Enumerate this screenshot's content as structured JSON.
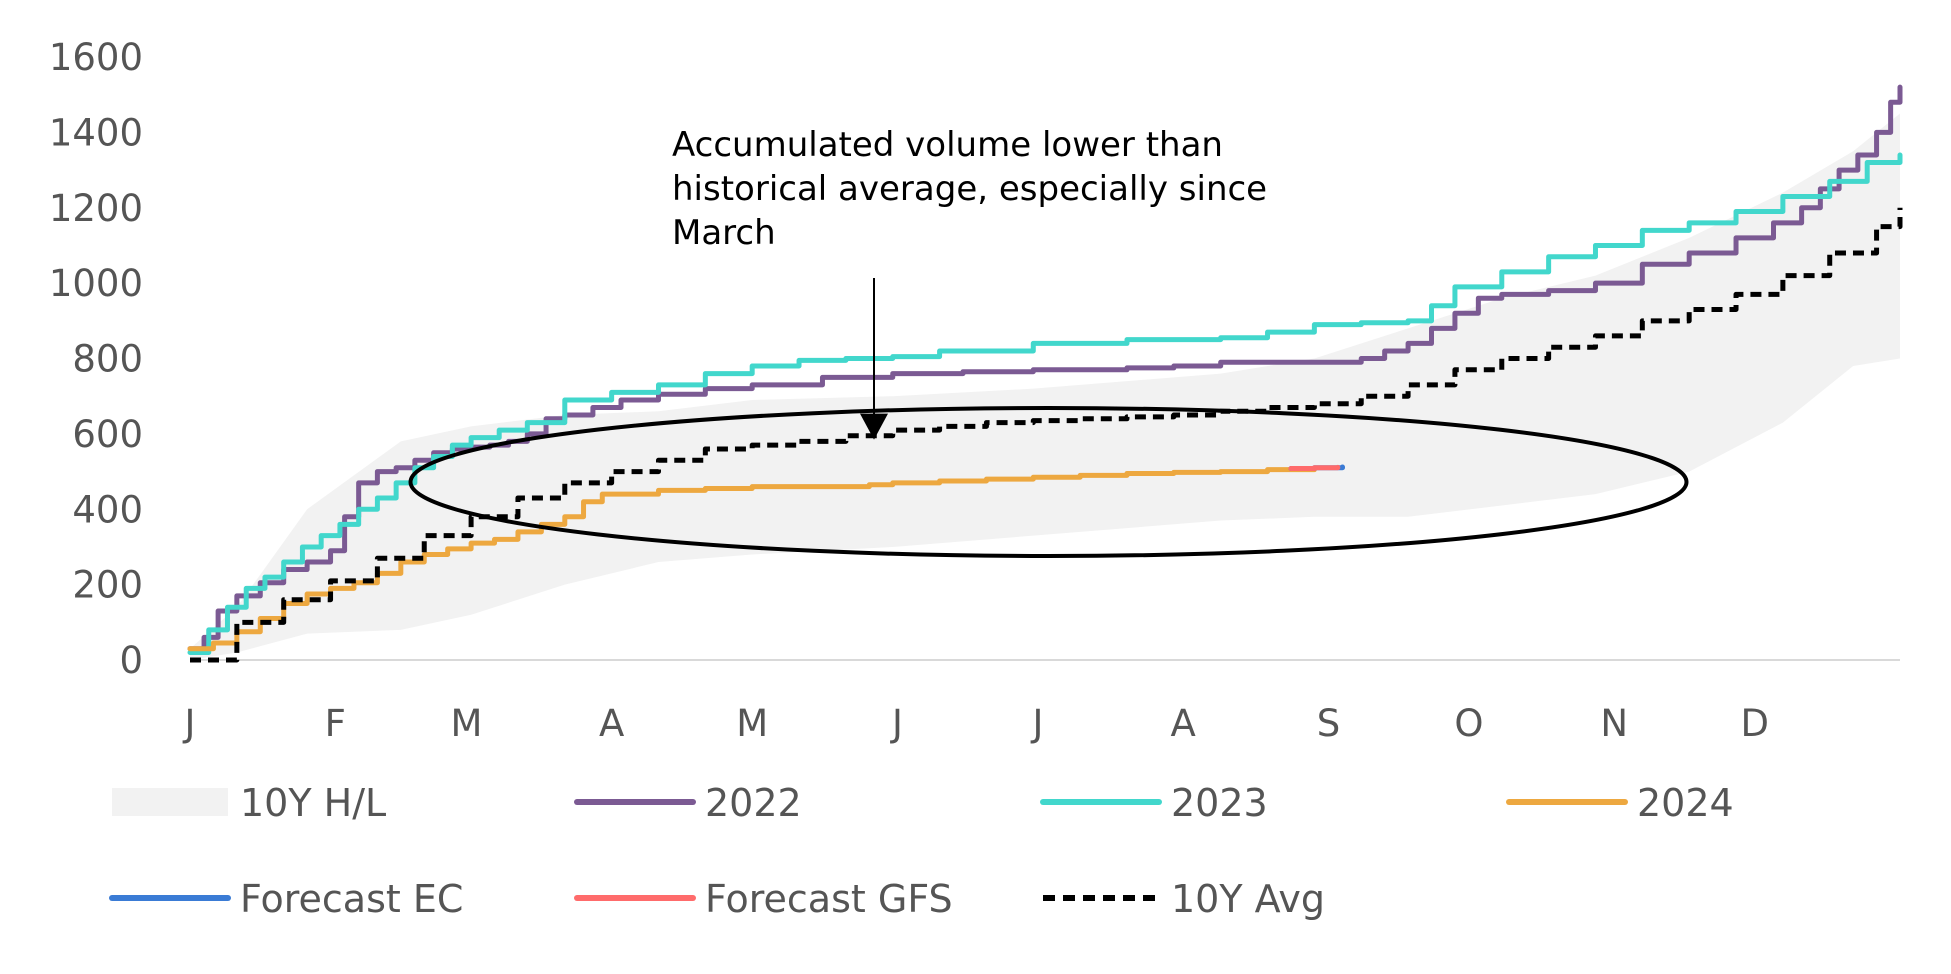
{
  "chart_data": {
    "type": "line",
    "title": "",
    "xlabel": "",
    "ylabel": "",
    "ylim": [
      0,
      1600
    ],
    "xlim": [
      0,
      365
    ],
    "y_ticks": [
      0,
      200,
      400,
      600,
      800,
      1000,
      1200,
      1400,
      1600
    ],
    "x_ticks": [
      {
        "label": "J",
        "day": 0
      },
      {
        "label": "F",
        "day": 31
      },
      {
        "label": "M",
        "day": 59
      },
      {
        "label": "A",
        "day": 90
      },
      {
        "label": "M",
        "day": 120
      },
      {
        "label": "J",
        "day": 151
      },
      {
        "label": "J",
        "day": 181
      },
      {
        "label": "A",
        "day": 212
      },
      {
        "label": "S",
        "day": 243
      },
      {
        "label": "O",
        "day": 273
      },
      {
        "label": "N",
        "day": 304
      },
      {
        "label": "D",
        "day": 334
      }
    ],
    "grid": false,
    "legend_position": "bottom",
    "band": {
      "name": "10Y H/L",
      "color": "#f2f2f2",
      "x": [
        0,
        10,
        25,
        45,
        60,
        80,
        100,
        120,
        150,
        180,
        200,
        220,
        240,
        260,
        280,
        300,
        320,
        340,
        355,
        365
      ],
      "low": [
        0,
        20,
        70,
        80,
        120,
        200,
        260,
        280,
        300,
        330,
        350,
        370,
        380,
        380,
        410,
        440,
        500,
        630,
        780,
        800
      ],
      "high": [
        30,
        140,
        400,
        580,
        620,
        650,
        660,
        690,
        700,
        720,
        740,
        760,
        800,
        880,
        960,
        1020,
        1120,
        1240,
        1350,
        1450
      ]
    },
    "series": [
      {
        "name": "2022",
        "color": "#7b5a93",
        "x": [
          0,
          3,
          6,
          10,
          15,
          20,
          25,
          30,
          33,
          36,
          40,
          44,
          48,
          52,
          56,
          60,
          64,
          68,
          72,
          76,
          80,
          86,
          92,
          100,
          110,
          120,
          135,
          150,
          165,
          180,
          200,
          210,
          220,
          240,
          250,
          255,
          260,
          265,
          270,
          275,
          280,
          290,
          300,
          310,
          320,
          330,
          338,
          344,
          348,
          352,
          356,
          360,
          363,
          365
        ],
        "y": [
          30,
          60,
          130,
          170,
          205,
          240,
          260,
          290,
          380,
          470,
          500,
          510,
          530,
          550,
          560,
          565,
          570,
          580,
          600,
          640,
          650,
          670,
          690,
          705,
          720,
          730,
          750,
          760,
          765,
          770,
          775,
          780,
          790,
          790,
          800,
          820,
          840,
          880,
          920,
          960,
          970,
          980,
          1000,
          1050,
          1080,
          1120,
          1160,
          1200,
          1250,
          1300,
          1340,
          1400,
          1480,
          1520
        ]
      },
      {
        "name": "2023",
        "color": "#42d7cc",
        "x": [
          0,
          4,
          8,
          12,
          16,
          20,
          24,
          28,
          32,
          36,
          40,
          44,
          48,
          52,
          56,
          60,
          66,
          72,
          80,
          90,
          100,
          110,
          120,
          130,
          140,
          150,
          160,
          180,
          200,
          220,
          230,
          240,
          250,
          260,
          265,
          270,
          280,
          290,
          300,
          310,
          320,
          330,
          340,
          350,
          358,
          365
        ],
        "y": [
          20,
          80,
          140,
          190,
          220,
          260,
          300,
          330,
          360,
          400,
          430,
          470,
          510,
          540,
          570,
          590,
          610,
          630,
          690,
          710,
          730,
          760,
          780,
          795,
          800,
          805,
          820,
          840,
          850,
          855,
          870,
          890,
          895,
          900,
          940,
          990,
          1030,
          1070,
          1100,
          1140,
          1160,
          1190,
          1230,
          1270,
          1320,
          1340
        ]
      },
      {
        "name": "2024",
        "color": "#eda840",
        "x": [
          0,
          5,
          10,
          15,
          20,
          25,
          30,
          35,
          40,
          45,
          50,
          55,
          60,
          65,
          70,
          75,
          80,
          84,
          88,
          92,
          100,
          110,
          120,
          130,
          140,
          145,
          150,
          160,
          170,
          180,
          190,
          200,
          210,
          220,
          230,
          235,
          240
        ],
        "y": [
          30,
          45,
          75,
          110,
          150,
          175,
          190,
          205,
          230,
          260,
          280,
          295,
          310,
          320,
          340,
          360,
          380,
          420,
          440,
          440,
          450,
          455,
          460,
          460,
          460,
          465,
          470,
          475,
          480,
          485,
          490,
          495,
          498,
          500,
          505,
          505,
          505
        ]
      },
      {
        "name": "Forecast EC",
        "color": "#3a7bd5",
        "x": [
          235,
          240,
          246
        ],
        "y": [
          508,
          510,
          512
        ]
      },
      {
        "name": "Forecast GFS",
        "color": "#ff6b6b",
        "x": [
          235,
          240,
          245
        ],
        "y": [
          508,
          510,
          511
        ]
      },
      {
        "name": "10Y Avg",
        "color": "#000000",
        "dashed": true,
        "x": [
          0,
          10,
          20,
          30,
          40,
          50,
          60,
          70,
          80,
          90,
          100,
          110,
          120,
          130,
          140,
          150,
          160,
          170,
          180,
          190,
          200,
          210,
          220,
          230,
          240,
          250,
          260,
          270,
          280,
          290,
          300,
          310,
          320,
          330,
          340,
          350,
          360,
          365
        ],
        "y": [
          0,
          100,
          160,
          210,
          270,
          330,
          380,
          430,
          470,
          500,
          530,
          560,
          570,
          580,
          595,
          610,
          620,
          630,
          635,
          640,
          645,
          650,
          660,
          670,
          680,
          700,
          730,
          770,
          800,
          830,
          860,
          900,
          930,
          970,
          1020,
          1080,
          1150,
          1200
        ]
      }
    ],
    "annotation": {
      "text_lines": [
        "Accumulated volume lower than",
        "historical average, especially since",
        "March"
      ],
      "arrow_target_day": 146,
      "arrow_target_value": 590
    },
    "legend": [
      {
        "label": "10Y H/L",
        "kind": "band",
        "color": "#f2f2f2"
      },
      {
        "label": "2022",
        "kind": "line",
        "color": "#7b5a93"
      },
      {
        "label": "2023",
        "kind": "line",
        "color": "#42d7cc"
      },
      {
        "label": "2024",
        "kind": "line",
        "color": "#eda840"
      },
      {
        "label": "Forecast EC",
        "kind": "line",
        "color": "#3a7bd5"
      },
      {
        "label": "Forecast GFS",
        "kind": "line",
        "color": "#ff6b6b"
      },
      {
        "label": "10Y Avg",
        "kind": "dashed",
        "color": "#000000"
      }
    ]
  }
}
